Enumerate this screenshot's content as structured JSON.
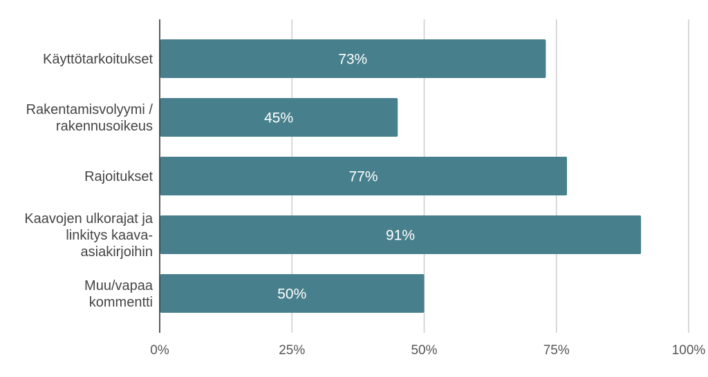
{
  "chart_data": {
    "type": "bar",
    "orientation": "horizontal",
    "title": "",
    "xlabel": "",
    "ylabel": "",
    "categories": [
      [
        "Käyttötarkoitukset"
      ],
      [
        "Rakentamisvolyymi /",
        "rakennusoikeus"
      ],
      [
        "Rajoitukset"
      ],
      [
        "Kaavojen ulkorajat ja",
        "linkitys kaava-",
        "asiakirjoihin"
      ],
      [
        "Muu/vapaa",
        "kommentti"
      ]
    ],
    "values": [
      73,
      45,
      77,
      91,
      50
    ],
    "data_labels": [
      "73%",
      "45%",
      "77%",
      "91%",
      "50%"
    ],
    "xlim": [
      0,
      100
    ],
    "x_ticks": [
      0,
      25,
      50,
      75,
      100
    ],
    "x_tick_labels": [
      "0%",
      "25%",
      "50%",
      "75%",
      "100%"
    ],
    "grid": "vertical",
    "legend": "none",
    "colors": {
      "bar": "#47808c",
      "grid": "#cccccc",
      "axis": "#222222"
    }
  }
}
